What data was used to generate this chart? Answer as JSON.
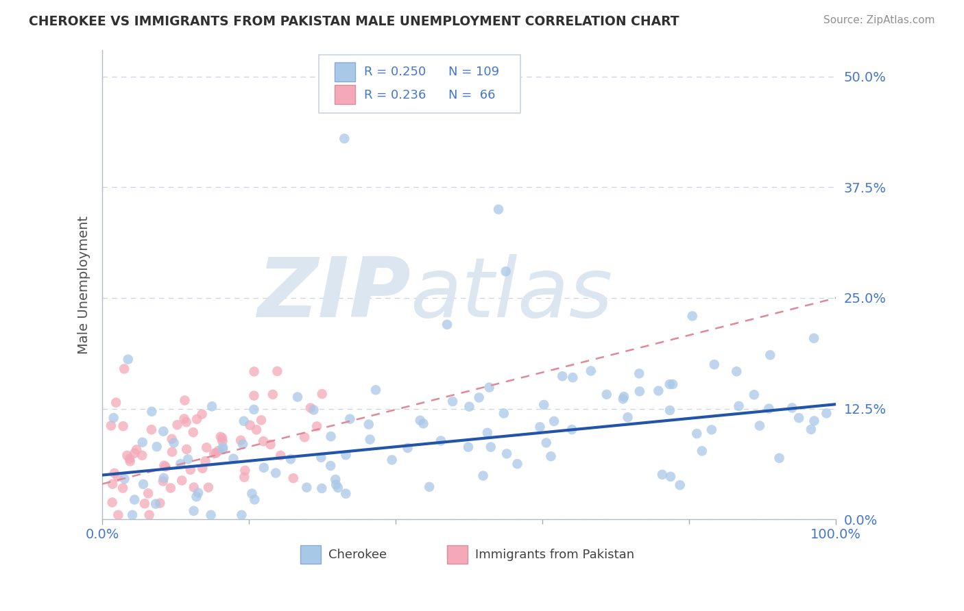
{
  "title": "CHEROKEE VS IMMIGRANTS FROM PAKISTAN MALE UNEMPLOYMENT CORRELATION CHART",
  "source": "Source: ZipAtlas.com",
  "ylabel": "Male Unemployment",
  "ytick_values": [
    0.0,
    12.5,
    25.0,
    37.5,
    50.0
  ],
  "xlim": [
    0.0,
    100.0
  ],
  "ylim": [
    0.0,
    53.0
  ],
  "legend_labels": [
    "Cherokee",
    "Immigrants from Pakistan"
  ],
  "legend_R": [
    0.25,
    0.236
  ],
  "legend_N": [
    109,
    66
  ],
  "scatter_color_cherokee": "#a8c8e8",
  "scatter_color_pakistan": "#f4a8b8",
  "line_color_cherokee": "#2255aa",
  "line_color_pakistan": "#e08898",
  "background_color": "#ffffff",
  "watermark_text": "ZIPatlas",
  "watermark_color": "#dce6f0",
  "tick_color": "#4477cc",
  "title_color": "#303030",
  "source_color": "#909090"
}
